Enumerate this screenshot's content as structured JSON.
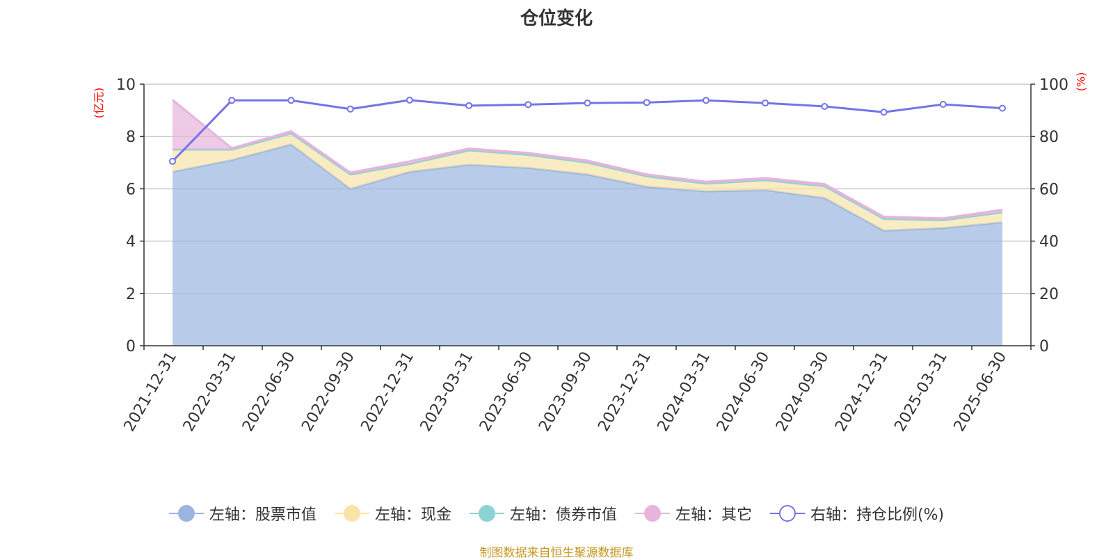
{
  "title": "仓位变化",
  "left_axis_unit": "(亿元)",
  "right_axis_unit": "(%)",
  "source": "制图数据来自恒生聚源数据库",
  "chart_data": {
    "type": "area",
    "title": "仓位变化",
    "categories": [
      "2021-12-31",
      "2022-03-31",
      "2022-06-30",
      "2022-09-30",
      "2022-12-31",
      "2023-03-31",
      "2023-06-30",
      "2023-09-30",
      "2023-12-31",
      "2024-03-31",
      "2024-06-30",
      "2024-09-30",
      "2024-12-31",
      "2025-03-31",
      "2025-06-30"
    ],
    "left_axis": {
      "unit": "(亿元)",
      "ylim": [
        0,
        10
      ],
      "ticks": [
        "0",
        "2",
        "4",
        "6",
        "8",
        "10"
      ]
    },
    "right_axis": {
      "unit": "(%)",
      "ylim": [
        0,
        100
      ],
      "ticks": [
        "0",
        "20",
        "40",
        "60",
        "80",
        "100"
      ]
    },
    "stacked": true,
    "series": [
      {
        "name": "左轴：股票市值",
        "axis": "left",
        "type": "area",
        "color": "#9ab5e0",
        "values": [
          6.65,
          7.1,
          7.7,
          6.0,
          6.65,
          6.92,
          6.8,
          6.55,
          6.08,
          5.9,
          5.95,
          5.65,
          4.4,
          4.5,
          4.72
        ]
      },
      {
        "name": "左轴：现金",
        "axis": "left",
        "type": "area",
        "color": "#f8e4a8",
        "values": [
          0.85,
          0.4,
          0.42,
          0.55,
          0.3,
          0.55,
          0.5,
          0.45,
          0.4,
          0.3,
          0.38,
          0.45,
          0.45,
          0.3,
          0.38
        ]
      },
      {
        "name": "左轴：债券市值",
        "axis": "left",
        "type": "area",
        "color": "#8ed3d3",
        "values": [
          0,
          0,
          0,
          0,
          0,
          0,
          0,
          0,
          0,
          0,
          0,
          0,
          0,
          0,
          0
        ]
      },
      {
        "name": "左轴：其它",
        "axis": "left",
        "type": "area",
        "color": "#e6b4dc",
        "values": [
          1.9,
          0.05,
          0.08,
          0.07,
          0.1,
          0.07,
          0.07,
          0.08,
          0.07,
          0.07,
          0.08,
          0.08,
          0.08,
          0.07,
          0.1
        ]
      },
      {
        "name": "右轴：持仓比例(%)",
        "axis": "right",
        "type": "line",
        "color": "#7474e8",
        "values": [
          70.5,
          93.8,
          93.8,
          90.5,
          93.9,
          91.8,
          92.2,
          92.8,
          93.0,
          93.8,
          92.8,
          91.5,
          89.3,
          92.3,
          90.8
        ]
      }
    ],
    "grid": true,
    "legend_position": "bottom"
  }
}
